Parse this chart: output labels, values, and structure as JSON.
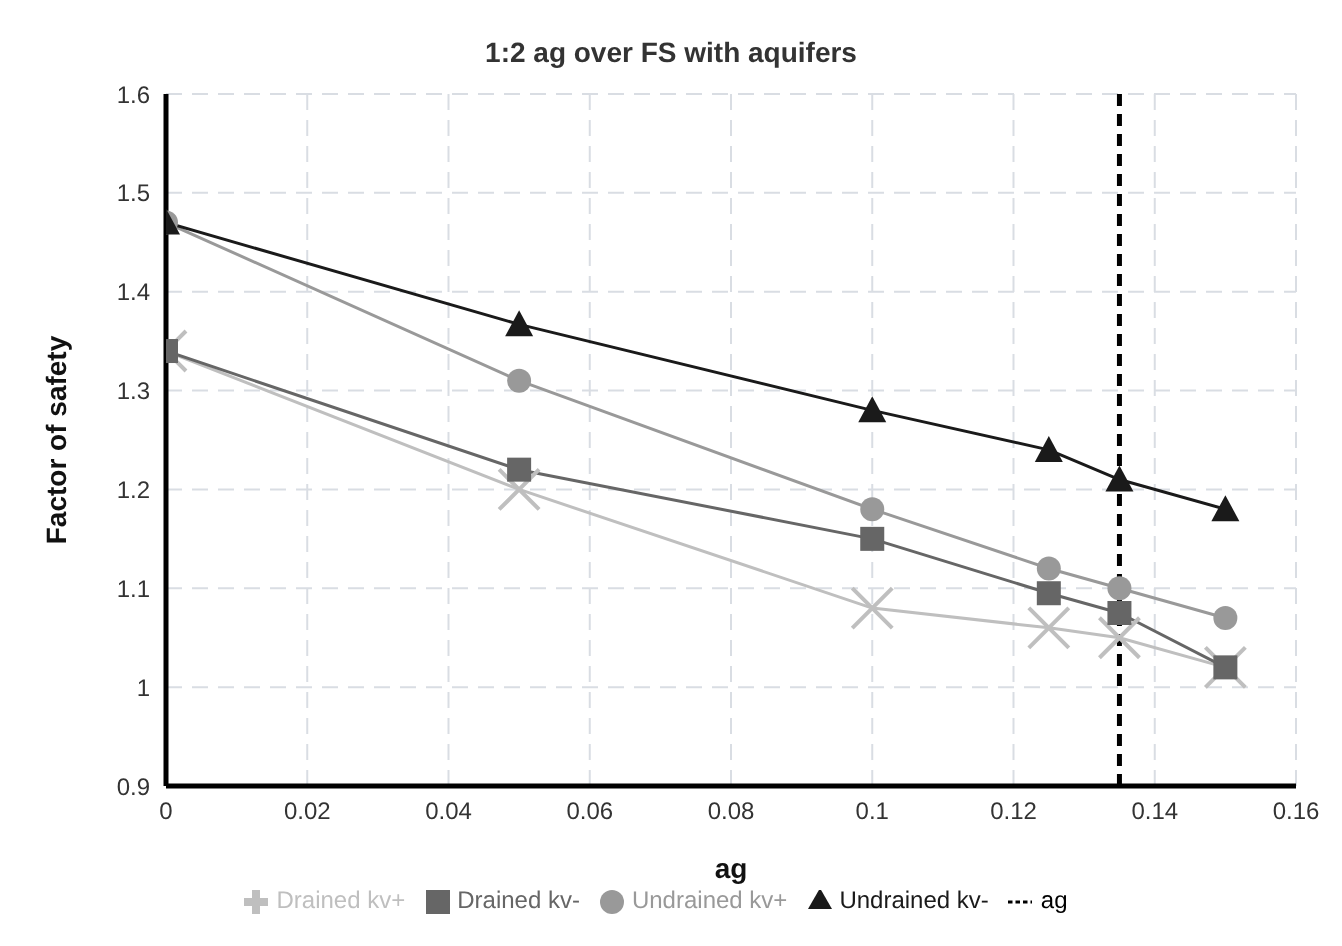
{
  "chart_data": {
    "type": "line",
    "title": "1:2 ag over FS with aquifers",
    "xlabel": "ag",
    "ylabel": "Factor of safety",
    "x": [
      0,
      0.05,
      0.1,
      0.125,
      0.135,
      0.15
    ],
    "series": [
      {
        "name": "Drained kv+",
        "color": "#bfbfbf",
        "marker": "cross",
        "values": [
          1.34,
          1.2,
          1.08,
          1.06,
          1.05,
          1.02
        ]
      },
      {
        "name": "Drained kv-",
        "color": "#666666",
        "marker": "square",
        "values": [
          1.34,
          1.22,
          1.15,
          1.095,
          1.075,
          1.02
        ]
      },
      {
        "name": "Undrained kv+",
        "color": "#999999",
        "marker": "circle",
        "values": [
          1.47,
          1.31,
          1.18,
          1.12,
          1.1,
          1.07
        ]
      },
      {
        "name": "Undrained kv-",
        "color": "#1a1a1a",
        "marker": "triangle",
        "values": [
          1.47,
          1.367,
          1.28,
          1.24,
          1.21,
          1.18
        ]
      },
      {
        "name": "ag",
        "color": "#000000",
        "marker": "none",
        "line_style": "dashed",
        "x": [
          0.135,
          0.135
        ],
        "values": [
          0.9,
          1.6
        ]
      }
    ],
    "xlim": [
      0,
      0.16
    ],
    "xticks": [
      0,
      0.02,
      0.04,
      0.06,
      0.08,
      0.1,
      0.12,
      0.14,
      0.16
    ],
    "ylim": [
      0.9,
      1.6
    ],
    "yticks": [
      0.9,
      1,
      1.1,
      1.2,
      1.3,
      1.4,
      1.5,
      1.6
    ],
    "grid": true,
    "legend": "bottom"
  }
}
